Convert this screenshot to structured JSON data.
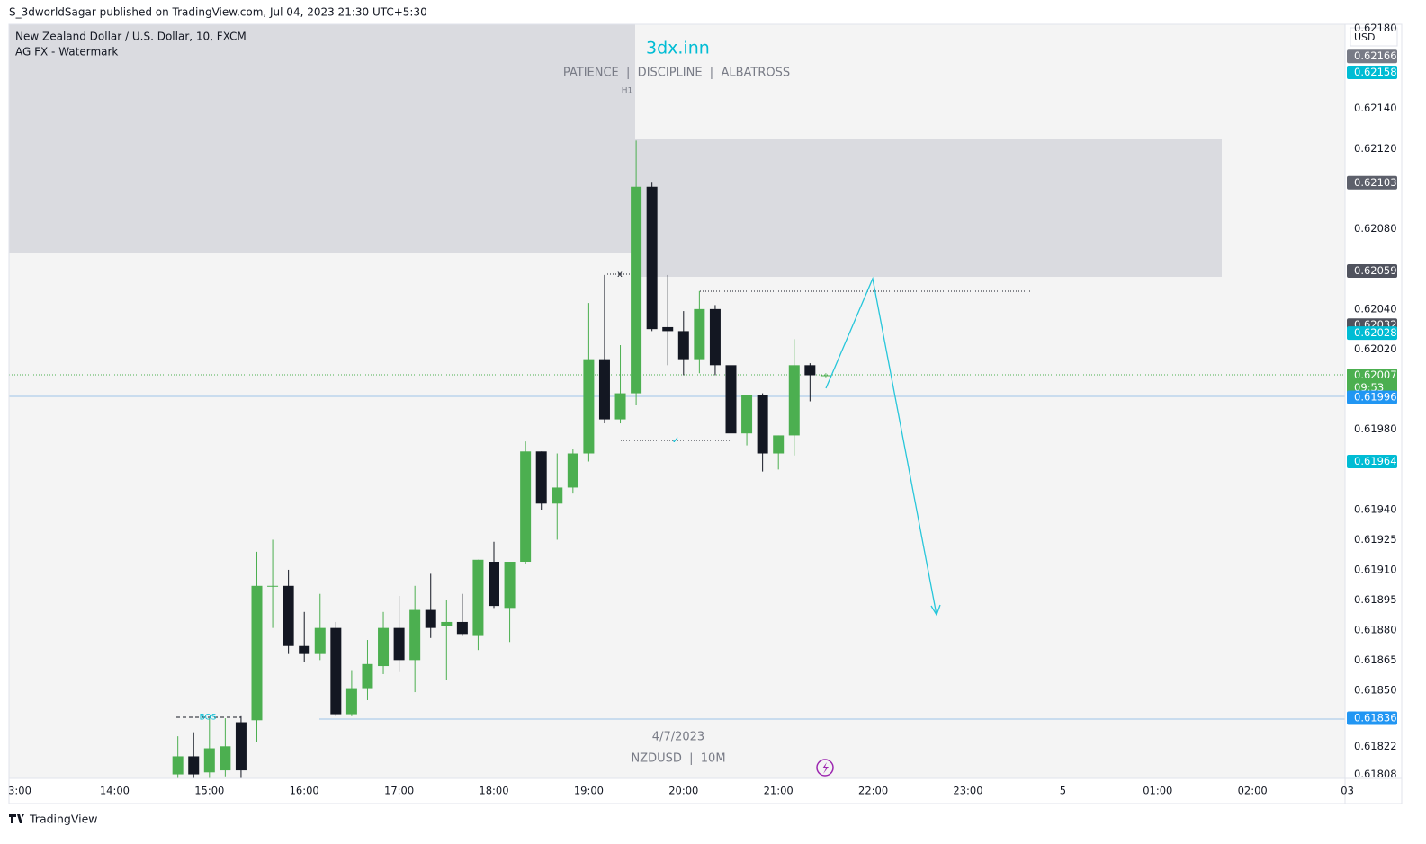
{
  "header": "S_3dworldSagar published on TradingView.com, Jul 04, 2023 21:30 UTC+5:30",
  "brand": "TradingView",
  "chart_data": {
    "type": "candlestick",
    "title": "New Zealand Dollar / U.S. Dollar, 10, FXCM",
    "subtitle": "AG FX - Watermark",
    "currency": "USD",
    "annotations": {
      "watermark": "3dx.inn",
      "motto": "PATIENCE  |  DISCIPLINE  |  ALBATROSS",
      "zone": "H1",
      "bos": "BOS",
      "high_mark": "x",
      "low_mark": "✓",
      "date": "4/7/2023",
      "symbol": "NZDUSD  |  10M"
    },
    "up_color": "#4caf50",
    "down_color": "#131722",
    "x": [
      "14:40",
      "14:50",
      "15:00",
      "15:10",
      "15:20",
      "15:30",
      "15:40",
      "15:50",
      "16:00",
      "16:10",
      "16:20",
      "16:30",
      "16:40",
      "16:50",
      "17:00",
      "17:10",
      "17:20",
      "17:30",
      "17:40",
      "17:50",
      "18:00",
      "18:10",
      "18:20",
      "18:30",
      "18:40",
      "18:50",
      "19:00",
      "19:10",
      "19:20",
      "19:30",
      "19:40",
      "19:50",
      "20:00",
      "20:10",
      "20:20",
      "20:30",
      "20:40",
      "20:50",
      "21:00",
      "21:10",
      "21:20",
      "21:30"
    ],
    "open": [
      0.61808,
      0.61817,
      0.61809,
      0.6181,
      0.61834,
      0.61835,
      0.61902,
      0.61902,
      0.61872,
      0.61868,
      0.61881,
      0.61838,
      0.61851,
      0.61862,
      0.61881,
      0.61865,
      0.6189,
      0.61882,
      0.61884,
      0.61877,
      0.61914,
      0.61891,
      0.61914,
      0.61969,
      0.61943,
      0.61951,
      0.61968,
      0.62015,
      0.61985,
      0.61998,
      0.62101,
      0.62031,
      0.62029,
      0.62015,
      0.6204,
      0.62012,
      0.61978,
      0.61997,
      0.61968,
      0.61977,
      0.62012,
      0.62007
    ],
    "high": [
      0.61827,
      0.61829,
      0.61836,
      0.61836,
      0.61837,
      0.61919,
      0.61925,
      0.6191,
      0.61889,
      0.61898,
      0.61884,
      0.6186,
      0.61875,
      0.61889,
      0.61897,
      0.61902,
      0.61908,
      0.61895,
      0.61898,
      0.61915,
      0.61924,
      0.61914,
      0.61974,
      0.61969,
      0.61968,
      0.6197,
      0.62043,
      0.62057,
      0.62022,
      0.62124,
      0.62103,
      0.62057,
      0.62039,
      0.62049,
      0.62042,
      0.62013,
      0.61997,
      0.61998,
      0.61977,
      0.62025,
      0.62013,
      0.62008
    ],
    "low": [
      0.61806,
      0.61806,
      0.61806,
      0.61807,
      0.61806,
      0.61824,
      0.61881,
      0.61868,
      0.61864,
      0.61865,
      0.61837,
      0.61837,
      0.61845,
      0.61858,
      0.61859,
      0.61849,
      0.61876,
      0.61855,
      0.61877,
      0.6187,
      0.61891,
      0.61874,
      0.61913,
      0.6194,
      0.61925,
      0.61948,
      0.61964,
      0.61983,
      0.61983,
      0.61992,
      0.62029,
      0.62012,
      0.62007,
      0.62008,
      0.62007,
      0.61973,
      0.61972,
      0.61959,
      0.6196,
      0.61967,
      0.61994,
      0.62006
    ],
    "close": [
      0.61817,
      0.61808,
      0.61821,
      0.61822,
      0.6181,
      0.61902,
      0.61902,
      0.61872,
      0.61868,
      0.61881,
      0.61838,
      0.61851,
      0.61863,
      0.61881,
      0.61865,
      0.6189,
      0.61881,
      0.61884,
      0.61878,
      0.61915,
      0.61892,
      0.61914,
      0.61969,
      0.61943,
      0.61951,
      0.61968,
      0.62015,
      0.61985,
      0.61998,
      0.62101,
      0.6203,
      0.62029,
      0.62015,
      0.6204,
      0.62012,
      0.61978,
      0.61997,
      0.61968,
      0.61977,
      0.62012,
      0.62007,
      0.62007
    ],
    "ylim": [
      0.61806,
      0.62182
    ],
    "yticks": [
      {
        "value": 0.6218,
        "label": "0.62180"
      },
      {
        "value": 0.6214,
        "label": "0.62140"
      },
      {
        "value": 0.6212,
        "label": "0.62120"
      },
      {
        "value": 0.6208,
        "label": "0.62080"
      },
      {
        "value": 0.6204,
        "label": "0.62040"
      },
      {
        "value": 0.6202,
        "label": "0.62020"
      },
      {
        "value": 0.6198,
        "label": "0.61980"
      },
      {
        "value": 0.6194,
        "label": "0.61940"
      },
      0.61925,
      {
        "value": 0.6191,
        "label": "0.61910"
      },
      0.61895,
      {
        "value": 0.6188,
        "label": "0.61880"
      },
      0.61865,
      {
        "value": 0.6185,
        "label": "0.61850"
      },
      0.61822,
      0.61808
    ],
    "xticks": [
      "3:00",
      "14:00",
      "15:00",
      "16:00",
      "17:00",
      "18:00",
      "19:00",
      "20:00",
      "21:00",
      "22:00",
      "23:00",
      "5",
      "01:00",
      "02:00",
      "03"
    ],
    "grid": false,
    "price_markers": [
      {
        "value": 0.62166,
        "color": "#787b86"
      },
      {
        "value": 0.62158,
        "color": "#00bcd4"
      },
      {
        "value": 0.62103,
        "color": "#5d606b"
      },
      {
        "value": 0.62059,
        "color": "#50535e"
      },
      {
        "value": 0.62032,
        "color": "#50535e"
      },
      {
        "value": 0.62028,
        "color": "#00bcd4"
      },
      {
        "value": 0.62007,
        "color": "#4caf50",
        "countdown": "09:53"
      },
      {
        "value": 0.61996,
        "color": "#2196f3"
      },
      {
        "value": 0.61964,
        "color": "#00bcd4"
      },
      {
        "value": 0.61836,
        "color": "#2196f3"
      }
    ]
  }
}
